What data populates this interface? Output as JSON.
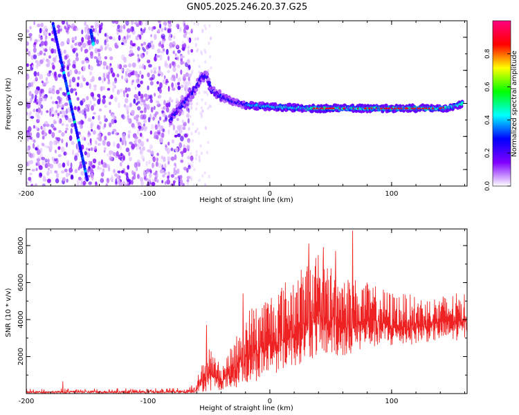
{
  "title": "GN05.2025.246.20.37.G25",
  "chart_data": [
    {
      "type": "heatmap",
      "name": "spectrogram",
      "xlabel": "Height of straight line (km)",
      "ylabel": "Frequency (Hz)",
      "xlim": [
        -200,
        162
      ],
      "ylim": [
        -50,
        50
      ],
      "xticks": [
        -200,
        -100,
        0,
        100
      ],
      "yticks": [
        -40,
        -20,
        0,
        20,
        40
      ],
      "colorbar": {
        "label": "Normalized spectral amplitude",
        "range": [
          0,
          1
        ],
        "ticks": [
          0.0,
          0.2,
          0.4,
          0.6,
          0.8
        ],
        "colors": [
          "#ffffff",
          "#8000ff",
          "#0000ff",
          "#00ffff",
          "#00ff00",
          "#ffff00",
          "#ff0000",
          "#ff0080"
        ]
      },
      "noise_region_x": [
        -200,
        -68
      ],
      "ridge": [
        {
          "x": -82,
          "y": -10
        },
        {
          "x": -75,
          "y": -3
        },
        {
          "x": -68,
          "y": 2
        },
        {
          "x": -62,
          "y": 8
        },
        {
          "x": -56,
          "y": 16
        },
        {
          "x": -52,
          "y": 17
        },
        {
          "x": -48,
          "y": 8
        },
        {
          "x": -40,
          "y": 4
        },
        {
          "x": -30,
          "y": 1
        },
        {
          "x": -20,
          "y": -1
        },
        {
          "x": 0,
          "y": -2
        },
        {
          "x": 30,
          "y": -3
        },
        {
          "x": 60,
          "y": -3
        },
        {
          "x": 100,
          "y": -3
        },
        {
          "x": 140,
          "y": -3
        },
        {
          "x": 150,
          "y": -2
        },
        {
          "x": 158,
          "y": 0
        }
      ],
      "streaks": [
        {
          "from": {
            "x": -178,
            "y": 48
          },
          "to": {
            "x": -150,
            "y": -46
          }
        },
        {
          "from": {
            "x": -147,
            "y": 44
          },
          "to": {
            "x": -145,
            "y": 36
          }
        }
      ]
    },
    {
      "type": "line",
      "name": "snr",
      "xlabel": "Height of straight line (km)",
      "ylabel": "SNR (10 * v/v)",
      "xlim": [
        -200,
        162
      ],
      "ylim": [
        0,
        8900
      ],
      "xticks": [
        -200,
        -100,
        0,
        100
      ],
      "yticks": [
        2000,
        4000,
        6000,
        8000
      ],
      "color": "#ee2222",
      "envelope": [
        {
          "x": -200,
          "low": 20,
          "high": 250
        },
        {
          "x": -70,
          "low": 20,
          "high": 300
        },
        {
          "x": -60,
          "low": 50,
          "high": 800
        },
        {
          "x": -50,
          "low": 150,
          "high": 2600
        },
        {
          "x": -40,
          "low": 200,
          "high": 1500
        },
        {
          "x": -30,
          "low": 300,
          "high": 2700
        },
        {
          "x": -20,
          "low": 400,
          "high": 4500
        },
        {
          "x": 0,
          "low": 1000,
          "high": 5500
        },
        {
          "x": 20,
          "low": 1500,
          "high": 6500
        },
        {
          "x": 40,
          "low": 2000,
          "high": 7500
        },
        {
          "x": 60,
          "low": 2000,
          "high": 6500
        },
        {
          "x": 80,
          "low": 2500,
          "high": 6000
        },
        {
          "x": 100,
          "low": 2500,
          "high": 5500
        },
        {
          "x": 130,
          "low": 2800,
          "high": 5200
        },
        {
          "x": 162,
          "low": 2900,
          "high": 5500
        }
      ],
      "peaks": [
        {
          "x": 68,
          "y": 8800
        },
        {
          "x": 32,
          "y": 8100
        },
        {
          "x": 44,
          "y": 7900
        },
        {
          "x": 54,
          "y": 7700
        },
        {
          "x": -22,
          "y": 5400
        },
        {
          "x": -52,
          "y": 3700
        },
        {
          "x": -170,
          "y": 650
        }
      ]
    }
  ]
}
